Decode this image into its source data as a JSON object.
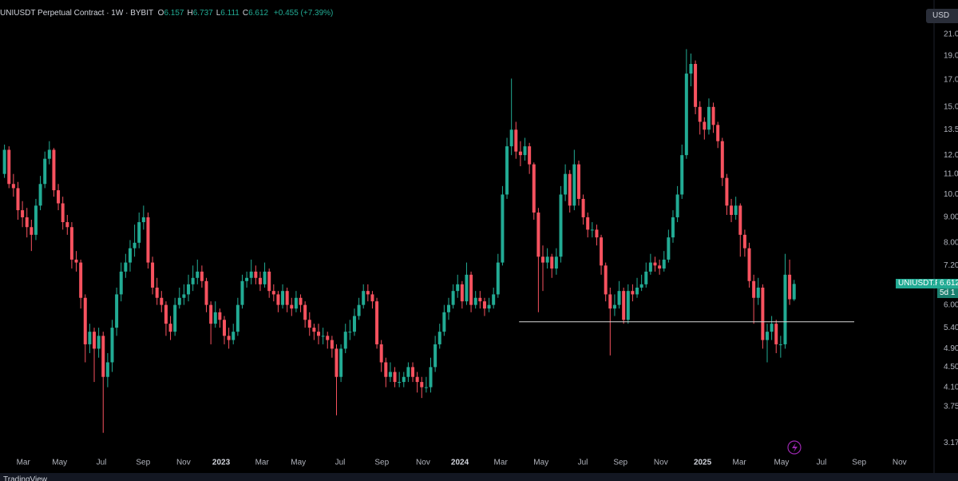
{
  "header": {
    "symbol": "UNIUSDT Perpetual Contract · 1W · BYBIT",
    "ohlc_fields": [
      {
        "key": "O",
        "value": "6.157"
      },
      {
        "key": "H",
        "value": "6.737"
      },
      {
        "key": "L",
        "value": "6.111"
      },
      {
        "key": "C",
        "value": "6.612"
      }
    ],
    "change": "+0.455 (+7.39%)",
    "currency_button": "USD"
  },
  "price_tag": {
    "symbol": "UNIUSDT.P",
    "price": "6.612",
    "countdown": "5d 1"
  },
  "footer": "TradingView",
  "chart_data": {
    "type": "candlestick",
    "log_scale": true,
    "grid": false,
    "up_color": "#22ab94",
    "down_color": "#f7525f",
    "line_color": "#d9d9d9",
    "ylim": [
      2.99,
      24.6
    ],
    "yticks": [
      {
        "value": 3.17,
        "label": "3.17"
      },
      {
        "value": 3.75,
        "label": "3.75"
      },
      {
        "value": 4.1,
        "label": "4.10"
      },
      {
        "value": 4.5,
        "label": "4.50"
      },
      {
        "value": 4.9,
        "label": "4.90"
      },
      {
        "value": 5.4,
        "label": "5.40"
      },
      {
        "value": 6,
        "label": "6.00"
      },
      {
        "value": 7.2,
        "label": "7.20"
      },
      {
        "value": 8,
        "label": "8.00"
      },
      {
        "value": 9,
        "label": "9.00"
      },
      {
        "value": 10,
        "label": "10.00"
      },
      {
        "value": 11,
        "label": "11.00"
      },
      {
        "value": 12,
        "label": "12.00"
      },
      {
        "value": 13.5,
        "label": "13.50"
      },
      {
        "value": 15,
        "label": "15.00"
      },
      {
        "value": 17,
        "label": "17.00"
      },
      {
        "value": 19,
        "label": "19.00"
      },
      {
        "value": 21,
        "label": "21.00"
      }
    ],
    "xlim": [
      0,
      207.3
    ],
    "xticks": [
      {
        "value": 5.2,
        "label": "Mar"
      },
      {
        "value": 13.3,
        "label": "May"
      },
      {
        "value": 22.6,
        "label": "Jul"
      },
      {
        "value": 31.9,
        "label": "Sep"
      },
      {
        "value": 40.9,
        "label": "Nov"
      },
      {
        "value": 49.3,
        "label": "2023"
      },
      {
        "value": 58.4,
        "label": "Mar"
      },
      {
        "value": 66.5,
        "label": "May"
      },
      {
        "value": 75.8,
        "label": "Jul"
      },
      {
        "value": 85.1,
        "label": "Sep"
      },
      {
        "value": 94.3,
        "label": "Nov"
      },
      {
        "value": 102.5,
        "label": "2024"
      },
      {
        "value": 111.6,
        "label": "Mar"
      },
      {
        "value": 120.6,
        "label": "May"
      },
      {
        "value": 129.9,
        "label": "Jul"
      },
      {
        "value": 138.3,
        "label": "Sep"
      },
      {
        "value": 147.3,
        "label": "Nov"
      },
      {
        "value": 156.6,
        "label": "2025"
      },
      {
        "value": 164.8,
        "label": "Mar"
      },
      {
        "value": 174.2,
        "label": "May"
      },
      {
        "value": 183.1,
        "label": "Jul"
      },
      {
        "value": 191.5,
        "label": "Sep"
      },
      {
        "value": 200.5,
        "label": "Nov"
      }
    ],
    "hline": {
      "value": 5.55,
      "x": [
        115.7,
        190.4
      ]
    },
    "x": [
      1,
      2,
      3,
      4,
      5,
      6,
      7,
      8,
      9,
      10,
      11,
      12,
      13,
      14,
      15,
      16,
      17,
      18,
      19,
      20,
      21,
      22,
      23,
      24,
      25,
      26,
      27,
      28,
      29,
      30,
      31,
      32,
      33,
      34,
      35,
      36,
      37,
      38,
      39,
      40,
      41,
      42,
      43,
      44,
      45,
      46,
      47,
      48,
      49,
      50,
      51,
      52,
      53,
      54,
      55,
      56,
      57,
      58,
      59,
      60,
      61,
      62,
      63,
      64,
      65,
      66,
      67,
      68,
      69,
      70,
      71,
      72,
      73,
      74,
      75,
      76,
      77,
      78,
      79,
      80,
      81,
      82,
      83,
      84,
      85,
      86,
      87,
      88,
      89,
      90,
      91,
      92,
      93,
      94,
      95,
      96,
      97,
      98,
      99,
      100,
      101,
      102,
      103,
      104,
      105,
      106,
      107,
      108,
      109,
      110,
      111,
      112,
      113,
      114,
      115,
      116,
      117,
      118,
      119,
      120,
      121,
      122,
      123,
      124,
      125,
      126,
      127,
      128,
      129,
      130,
      131,
      132,
      133,
      134,
      135,
      136,
      137,
      138,
      139,
      140,
      141,
      142,
      143,
      144,
      145,
      146,
      147,
      148,
      149,
      150,
      151,
      152,
      153,
      154,
      155,
      156,
      157,
      158,
      159,
      160,
      161,
      162,
      163,
      164,
      165,
      166,
      167,
      168,
      169,
      170,
      171,
      172,
      173,
      174,
      175,
      176,
      177
    ],
    "ohlc": [
      [
        11.0,
        12.6,
        10.8,
        12.3
      ],
      [
        12.3,
        12.5,
        10.3,
        10.5
      ],
      [
        10.5,
        11.0,
        9.9,
        10.3
      ],
      [
        10.3,
        10.6,
        8.9,
        9.3
      ],
      [
        9.3,
        9.7,
        8.6,
        9.0
      ],
      [
        9.0,
        9.4,
        8.2,
        8.6
      ],
      [
        8.6,
        8.9,
        7.7,
        8.3
      ],
      [
        8.3,
        9.8,
        8.1,
        9.5
      ],
      [
        9.5,
        10.9,
        9.3,
        10.5
      ],
      [
        10.5,
        12.2,
        10.3,
        11.8
      ],
      [
        11.8,
        12.8,
        11.5,
        12.3
      ],
      [
        12.3,
        12.4,
        9.9,
        10.2
      ],
      [
        10.2,
        10.5,
        9.3,
        9.6
      ],
      [
        9.6,
        9.9,
        8.5,
        8.8
      ],
      [
        8.8,
        9.1,
        8.3,
        8.6
      ],
      [
        8.6,
        8.8,
        7.1,
        7.4
      ],
      [
        7.4,
        7.7,
        7.0,
        7.3
      ],
      [
        7.3,
        7.4,
        5.9,
        6.2
      ],
      [
        6.2,
        6.3,
        4.6,
        5.0
      ],
      [
        5.0,
        5.5,
        4.8,
        5.3
      ],
      [
        5.3,
        5.4,
        4.2,
        4.9
      ],
      [
        4.9,
        5.4,
        4.7,
        5.2
      ],
      [
        5.2,
        5.3,
        3.32,
        4.3
      ],
      [
        4.3,
        4.8,
        4.1,
        4.6
      ],
      [
        4.6,
        5.6,
        4.4,
        5.4
      ],
      [
        5.4,
        6.5,
        5.2,
        6.3
      ],
      [
        6.3,
        7.3,
        6.1,
        7.0
      ],
      [
        7.0,
        7.6,
        6.8,
        7.3
      ],
      [
        7.3,
        8.1,
        7.0,
        7.8
      ],
      [
        7.8,
        8.7,
        7.5,
        8.0
      ],
      [
        8.0,
        9.2,
        7.8,
        8.8
      ],
      [
        8.8,
        9.5,
        8.5,
        9.0
      ],
      [
        9.0,
        9.2,
        7.1,
        7.3
      ],
      [
        7.3,
        7.5,
        6.3,
        6.5
      ],
      [
        6.5,
        6.8,
        6.0,
        6.2
      ],
      [
        6.2,
        6.4,
        5.8,
        6.0
      ],
      [
        6.0,
        6.1,
        5.2,
        5.5
      ],
      [
        5.5,
        5.7,
        5.1,
        5.3
      ],
      [
        5.3,
        6.2,
        5.2,
        6.0
      ],
      [
        6.0,
        6.5,
        5.9,
        6.2
      ],
      [
        6.2,
        6.6,
        6.0,
        6.3
      ],
      [
        6.3,
        6.9,
        6.1,
        6.6
      ],
      [
        6.6,
        7.2,
        6.4,
        6.8
      ],
      [
        6.8,
        7.4,
        6.6,
        7.0
      ],
      [
        7.0,
        7.2,
        6.5,
        6.7
      ],
      [
        6.7,
        6.8,
        5.8,
        6.0
      ],
      [
        6.0,
        6.1,
        5.0,
        5.5
      ],
      [
        5.5,
        6.1,
        5.4,
        5.8
      ],
      [
        5.8,
        5.9,
        5.4,
        5.6
      ],
      [
        5.6,
        5.7,
        5.0,
        5.2
      ],
      [
        5.2,
        5.4,
        4.9,
        5.1
      ],
      [
        5.1,
        5.5,
        5.0,
        5.3
      ],
      [
        5.3,
        6.2,
        5.2,
        6.0
      ],
      [
        6.0,
        6.9,
        5.9,
        6.7
      ],
      [
        6.7,
        7.0,
        6.5,
        6.8
      ],
      [
        6.8,
        7.4,
        6.6,
        7.0
      ],
      [
        7.0,
        7.2,
        6.6,
        6.8
      ],
      [
        6.8,
        7.0,
        6.4,
        6.6
      ],
      [
        6.6,
        7.3,
        6.5,
        7.0
      ],
      [
        7.0,
        7.1,
        6.2,
        6.4
      ],
      [
        6.4,
        6.6,
        6.1,
        6.3
      ],
      [
        6.3,
        6.4,
        5.8,
        6.0
      ],
      [
        6.0,
        6.6,
        5.9,
        6.4
      ],
      [
        6.4,
        6.5,
        5.8,
        6.0
      ],
      [
        6.0,
        6.2,
        5.7,
        5.9
      ],
      [
        5.9,
        6.4,
        5.8,
        6.2
      ],
      [
        6.2,
        6.3,
        5.8,
        6.0
      ],
      [
        6.0,
        6.1,
        5.4,
        5.6
      ],
      [
        5.6,
        5.8,
        5.2,
        5.4
      ],
      [
        5.4,
        5.5,
        5.1,
        5.3
      ],
      [
        5.3,
        5.5,
        5.0,
        5.2
      ],
      [
        5.2,
        5.4,
        5.0,
        5.2
      ],
      [
        5.2,
        5.3,
        4.9,
        5.1
      ],
      [
        5.1,
        5.2,
        4.7,
        4.9
      ],
      [
        4.9,
        5.0,
        3.6,
        4.3
      ],
      [
        4.3,
        5.0,
        4.2,
        4.9
      ],
      [
        4.9,
        5.5,
        4.8,
        5.3
      ],
      [
        5.3,
        5.6,
        5.1,
        5.3
      ],
      [
        5.3,
        5.9,
        5.2,
        5.7
      ],
      [
        5.7,
        6.2,
        5.6,
        6.0
      ],
      [
        6.0,
        6.6,
        5.9,
        6.4
      ],
      [
        6.4,
        6.6,
        6.1,
        6.3
      ],
      [
        6.3,
        6.4,
        5.9,
        6.1
      ],
      [
        6.1,
        6.2,
        4.9,
        5.0
      ],
      [
        5.0,
        5.1,
        4.4,
        4.6
      ],
      [
        4.6,
        4.7,
        4.1,
        4.3
      ],
      [
        4.3,
        4.6,
        4.2,
        4.4
      ],
      [
        4.4,
        4.5,
        4.1,
        4.2
      ],
      [
        4.2,
        4.4,
        4.1,
        4.2
      ],
      [
        4.2,
        4.4,
        4.1,
        4.3
      ],
      [
        4.3,
        4.6,
        4.2,
        4.5
      ],
      [
        4.5,
        4.6,
        4.2,
        4.3
      ],
      [
        4.3,
        4.4,
        4.0,
        4.2
      ],
      [
        4.2,
        4.3,
        3.9,
        4.1
      ],
      [
        4.1,
        4.3,
        4.0,
        4.1
      ],
      [
        4.1,
        4.7,
        4.0,
        4.5
      ],
      [
        4.5,
        5.2,
        4.4,
        5.0
      ],
      [
        5.0,
        5.5,
        4.9,
        5.3
      ],
      [
        5.3,
        6.0,
        5.2,
        5.8
      ],
      [
        5.8,
        6.2,
        5.6,
        6.0
      ],
      [
        6.0,
        6.6,
        5.9,
        6.4
      ],
      [
        6.4,
        6.9,
        6.2,
        6.6
      ],
      [
        6.6,
        6.7,
        5.9,
        6.1
      ],
      [
        6.1,
        7.3,
        6.0,
        6.9
      ],
      [
        6.9,
        7.0,
        5.8,
        6.0
      ],
      [
        6.0,
        6.4,
        5.9,
        6.2
      ],
      [
        6.2,
        6.4,
        5.9,
        6.1
      ],
      [
        6.1,
        6.2,
        5.7,
        5.9
      ],
      [
        5.9,
        6.2,
        5.8,
        6.0
      ],
      [
        6.0,
        6.5,
        5.9,
        6.3
      ],
      [
        6.3,
        7.6,
        6.2,
        7.3
      ],
      [
        7.3,
        10.4,
        7.2,
        10.0
      ],
      [
        10.0,
        13.0,
        9.8,
        12.5
      ],
      [
        12.5,
        17.1,
        12.0,
        13.5
      ],
      [
        13.5,
        14.0,
        11.8,
        12.2
      ],
      [
        12.2,
        12.8,
        11.4,
        12.0
      ],
      [
        12.0,
        13.0,
        11.7,
        12.5
      ],
      [
        12.5,
        12.7,
        11.0,
        11.5
      ],
      [
        11.5,
        11.6,
        8.9,
        9.2
      ],
      [
        9.2,
        9.4,
        5.8,
        7.5
      ],
      [
        7.5,
        7.9,
        6.4,
        7.3
      ],
      [
        7.3,
        7.8,
        7.1,
        7.5
      ],
      [
        7.5,
        7.6,
        6.8,
        7.1
      ],
      [
        7.1,
        7.8,
        6.9,
        7.5
      ],
      [
        7.5,
        10.4,
        7.3,
        10.0
      ],
      [
        10.0,
        11.5,
        9.7,
        11.0
      ],
      [
        11.0,
        11.2,
        9.2,
        9.5
      ],
      [
        9.5,
        12.3,
        9.3,
        11.5
      ],
      [
        11.5,
        11.7,
        9.5,
        9.8
      ],
      [
        9.8,
        10.0,
        8.7,
        9.0
      ],
      [
        9.0,
        9.2,
        8.2,
        8.5
      ],
      [
        8.5,
        8.8,
        8.2,
        8.5
      ],
      [
        8.5,
        8.7,
        7.9,
        8.2
      ],
      [
        8.2,
        8.3,
        6.9,
        7.2
      ],
      [
        7.2,
        7.3,
        6.1,
        6.3
      ],
      [
        6.3,
        6.5,
        4.75,
        5.9
      ],
      [
        5.9,
        6.3,
        5.7,
        6.0
      ],
      [
        6.0,
        6.7,
        5.9,
        6.4
      ],
      [
        6.4,
        6.5,
        5.5,
        5.6
      ],
      [
        5.6,
        6.6,
        5.5,
        6.4
      ],
      [
        6.4,
        6.6,
        6.1,
        6.3
      ],
      [
        6.3,
        6.8,
        6.2,
        6.5
      ],
      [
        6.5,
        6.9,
        6.4,
        6.6
      ],
      [
        6.6,
        7.3,
        6.5,
        7.0
      ],
      [
        7.0,
        7.6,
        6.9,
        7.3
      ],
      [
        7.3,
        7.5,
        7.0,
        7.2
      ],
      [
        7.2,
        7.4,
        6.9,
        7.1
      ],
      [
        7.1,
        7.7,
        7.0,
        7.4
      ],
      [
        7.4,
        8.5,
        7.3,
        8.2
      ],
      [
        8.2,
        9.3,
        8.0,
        9.0
      ],
      [
        9.0,
        10.4,
        8.8,
        10.0
      ],
      [
        10.0,
        12.6,
        9.8,
        12.0
      ],
      [
        12.0,
        19.6,
        11.8,
        17.5
      ],
      [
        17.5,
        19.2,
        16.5,
        18.3
      ],
      [
        18.3,
        18.6,
        14.5,
        15.0
      ],
      [
        15.0,
        15.4,
        13.2,
        14.0
      ],
      [
        14.0,
        14.3,
        12.9,
        13.5
      ],
      [
        13.5,
        15.6,
        13.2,
        15.0
      ],
      [
        15.0,
        15.3,
        13.3,
        13.8
      ],
      [
        13.8,
        14.0,
        12.4,
        12.8
      ],
      [
        12.8,
        13.0,
        10.4,
        10.8
      ],
      [
        10.8,
        11.0,
        9.1,
        9.5
      ],
      [
        9.5,
        9.8,
        8.8,
        9.1
      ],
      [
        9.1,
        9.9,
        8.9,
        9.5
      ],
      [
        9.5,
        9.6,
        7.5,
        8.3
      ],
      [
        8.3,
        8.5,
        7.5,
        7.8
      ],
      [
        7.8,
        8.0,
        6.5,
        6.7
      ],
      [
        6.7,
        6.9,
        5.5,
        6.2
      ],
      [
        6.2,
        6.8,
        6.0,
        6.5
      ],
      [
        6.5,
        6.6,
        4.9,
        5.1
      ],
      [
        5.1,
        5.5,
        4.6,
        5.3
      ],
      [
        5.3,
        5.7,
        5.1,
        5.5
      ],
      [
        5.5,
        5.6,
        4.8,
        5.0
      ],
      [
        5.0,
        5.2,
        4.7,
        5.0
      ],
      [
        5.0,
        7.6,
        4.9,
        6.9
      ],
      [
        6.9,
        7.4,
        6.0,
        6.16
      ],
      [
        6.157,
        6.737,
        6.111,
        6.612
      ]
    ]
  }
}
